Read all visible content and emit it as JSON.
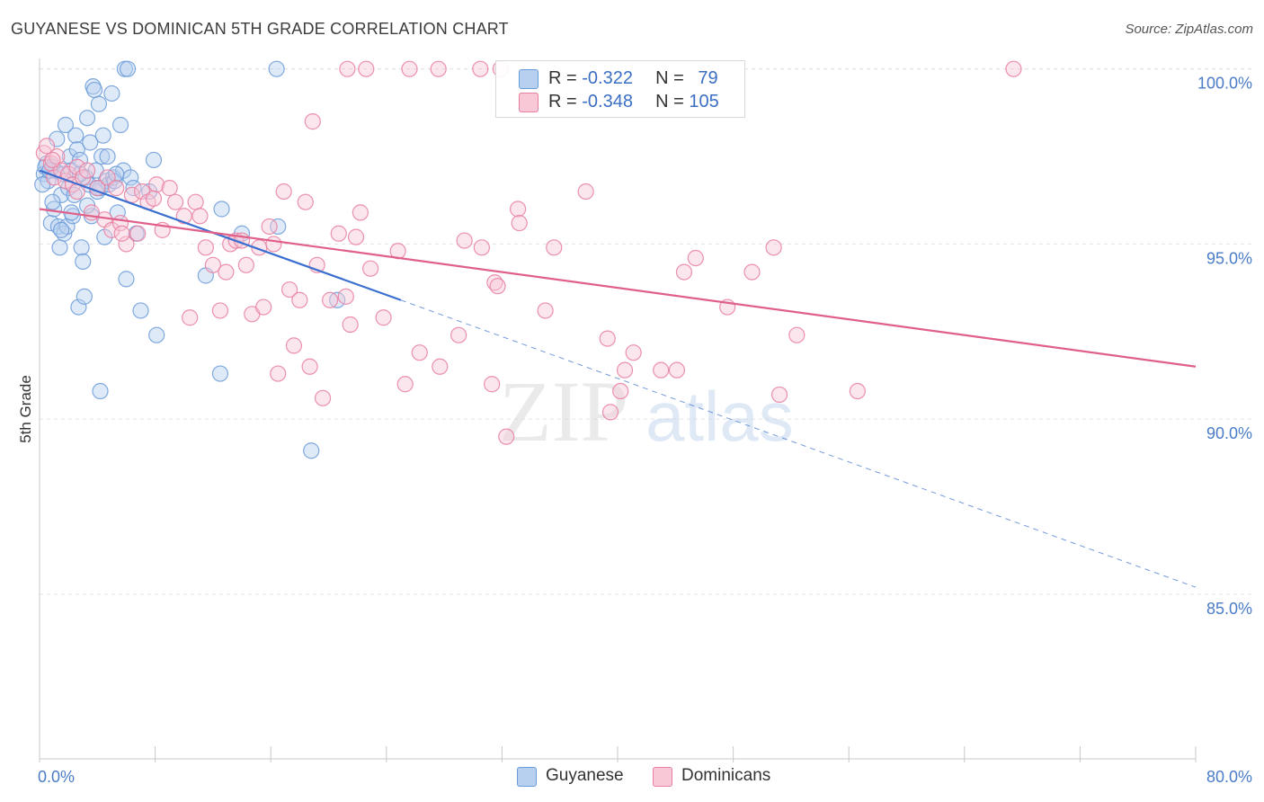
{
  "title": "GUYANESE VS DOMINICAN 5TH GRADE CORRELATION CHART",
  "source": "Source: ZipAtlas.com",
  "watermark": {
    "zip": "ZIP",
    "atlas": "atlas"
  },
  "legend": {
    "rows": [
      {
        "r_label": "R = ",
        "r_value": "-0.322",
        "n_label": "N = ",
        "n_value": "79",
        "color": "#6b9bd8",
        "fill": "#b8d0f0"
      },
      {
        "r_label": "R = ",
        "r_value": "-0.348",
        "n_label": "N = ",
        "n_value": "105",
        "color": "#e87ea0",
        "fill": "#f8c8d6"
      }
    ]
  },
  "bottom_legend": [
    {
      "label": "Guyanese",
      "color": "#6b9bd8",
      "fill": "#b8d0f0"
    },
    {
      "label": "Dominicans",
      "color": "#e87ea0",
      "fill": "#f8c8d6"
    }
  ],
  "chart_data": {
    "type": "scatter",
    "title": "GUYANESE VS DOMINICAN 5TH GRADE CORRELATION CHART",
    "xlabel": "",
    "ylabel": "5th Grade",
    "xlim": [
      0,
      80
    ],
    "ylim": [
      80.3,
      100.3
    ],
    "x_tick_labels": [
      "0.0%",
      "80.0%"
    ],
    "y_ticks": [
      100,
      95,
      90,
      85
    ],
    "y_tick_labels": [
      "100.0%",
      "95.0%",
      "90.0%",
      "85.0%"
    ],
    "grid": true,
    "legend_position": "top-center",
    "series": [
      {
        "name": "Guyanese",
        "color": "#6b9bd8",
        "fill": "#b8d0f0",
        "line_color": "#3a6fd0",
        "r": -0.322,
        "n": 79,
        "trend": {
          "x0": 0,
          "y0": 97.1,
          "x1": 25,
          "y1": 93.4,
          "dash_to_x": 80,
          "dash_to_y": 85.2
        },
        "points": [
          [
            0.3,
            97.0
          ],
          [
            0.5,
            97.3
          ],
          [
            0.6,
            96.8
          ],
          [
            0.8,
            95.6
          ],
          [
            0.9,
            97.2
          ],
          [
            1.0,
            96.0
          ],
          [
            1.1,
            97.1
          ],
          [
            1.2,
            98.0
          ],
          [
            1.3,
            95.5
          ],
          [
            1.4,
            94.9
          ],
          [
            1.5,
            96.4
          ],
          [
            1.6,
            97.0
          ],
          [
            1.7,
            95.3
          ],
          [
            1.8,
            98.4
          ],
          [
            1.9,
            95.5
          ],
          [
            2.0,
            96.6
          ],
          [
            2.1,
            97.5
          ],
          [
            2.2,
            97.1
          ],
          [
            2.3,
            95.8
          ],
          [
            2.4,
            96.4
          ],
          [
            2.5,
            98.1
          ],
          [
            2.6,
            97.7
          ],
          [
            2.7,
            93.2
          ],
          [
            2.8,
            97.4
          ],
          [
            2.9,
            94.9
          ],
          [
            3.0,
            94.5
          ],
          [
            3.1,
            93.5
          ],
          [
            3.2,
            96.9
          ],
          [
            3.3,
            98.6
          ],
          [
            3.4,
            96.7
          ],
          [
            3.5,
            97.9
          ],
          [
            3.6,
            95.8
          ],
          [
            3.7,
            99.5
          ],
          [
            3.8,
            99.4
          ],
          [
            3.9,
            97.1
          ],
          [
            4.0,
            96.5
          ],
          [
            4.1,
            99.0
          ],
          [
            4.2,
            96.6
          ],
          [
            4.3,
            97.5
          ],
          [
            4.4,
            98.1
          ],
          [
            4.5,
            95.2
          ],
          [
            4.6,
            96.8
          ],
          [
            4.7,
            97.5
          ],
          [
            4.8,
            96.7
          ],
          [
            5.0,
            99.3
          ],
          [
            5.1,
            96.9
          ],
          [
            5.2,
            96.8
          ],
          [
            5.4,
            95.9
          ],
          [
            5.6,
            98.4
          ],
          [
            5.8,
            97.1
          ],
          [
            5.9,
            100.0
          ],
          [
            6.1,
            100.0
          ],
          [
            6.3,
            96.9
          ],
          [
            6.5,
            96.6
          ],
          [
            6.7,
            95.3
          ],
          [
            7.0,
            93.1
          ],
          [
            7.6,
            96.5
          ],
          [
            7.9,
            97.4
          ],
          [
            8.1,
            92.4
          ],
          [
            6.0,
            94.0
          ],
          [
            11.5,
            94.1
          ],
          [
            12.6,
            96.0
          ],
          [
            12.5,
            91.3
          ],
          [
            14.0,
            95.3
          ],
          [
            16.4,
            100.0
          ],
          [
            16.5,
            95.5
          ],
          [
            18.8,
            89.1
          ],
          [
            20.6,
            93.4
          ],
          [
            4.2,
            90.8
          ],
          [
            0.4,
            97.2
          ],
          [
            0.7,
            97.1
          ],
          [
            1.5,
            95.4
          ],
          [
            2.2,
            95.9
          ],
          [
            2.8,
            97.0
          ],
          [
            3.3,
            96.1
          ],
          [
            4.0,
            96.6
          ],
          [
            5.3,
            97.0
          ],
          [
            0.2,
            96.7
          ],
          [
            0.9,
            96.2
          ]
        ]
      },
      {
        "name": "Dominicans",
        "color": "#e87ea0",
        "fill": "#f8c8d6",
        "line_color": "#e0608a",
        "r": -0.348,
        "n": 105,
        "trend": {
          "x0": 0,
          "y0": 96.0,
          "x1": 80,
          "y1": 91.5
        },
        "points": [
          [
            0.3,
            97.6
          ],
          [
            0.5,
            97.8
          ],
          [
            0.8,
            97.3
          ],
          [
            1.0,
            96.9
          ],
          [
            1.2,
            97.5
          ],
          [
            1.5,
            97.1
          ],
          [
            1.8,
            96.8
          ],
          [
            2.0,
            97.0
          ],
          [
            2.3,
            96.7
          ],
          [
            2.6,
            97.2
          ],
          [
            3.0,
            96.9
          ],
          [
            3.3,
            97.1
          ],
          [
            3.6,
            95.9
          ],
          [
            4.0,
            96.6
          ],
          [
            4.5,
            95.7
          ],
          [
            4.7,
            96.9
          ],
          [
            5.0,
            95.4
          ],
          [
            5.3,
            96.6
          ],
          [
            5.6,
            95.6
          ],
          [
            6.0,
            95.0
          ],
          [
            6.4,
            96.4
          ],
          [
            6.8,
            95.3
          ],
          [
            7.1,
            96.5
          ],
          [
            7.5,
            96.2
          ],
          [
            8.1,
            96.7
          ],
          [
            8.5,
            95.4
          ],
          [
            9.0,
            96.6
          ],
          [
            9.4,
            96.2
          ],
          [
            10.0,
            95.8
          ],
          [
            10.4,
            92.9
          ],
          [
            10.8,
            96.2
          ],
          [
            11.1,
            95.8
          ],
          [
            11.5,
            94.9
          ],
          [
            12.0,
            94.4
          ],
          [
            12.5,
            93.1
          ],
          [
            12.9,
            94.2
          ],
          [
            13.2,
            95.0
          ],
          [
            13.6,
            95.1
          ],
          [
            14.0,
            95.1
          ],
          [
            14.3,
            94.4
          ],
          [
            14.7,
            93.0
          ],
          [
            15.2,
            94.9
          ],
          [
            15.5,
            93.2
          ],
          [
            15.9,
            95.5
          ],
          [
            16.2,
            95.0
          ],
          [
            16.5,
            91.3
          ],
          [
            16.9,
            96.5
          ],
          [
            17.3,
            93.7
          ],
          [
            17.6,
            92.1
          ],
          [
            18.0,
            93.4
          ],
          [
            18.4,
            96.2
          ],
          [
            18.7,
            91.5
          ],
          [
            18.9,
            98.5
          ],
          [
            19.2,
            94.4
          ],
          [
            19.6,
            90.6
          ],
          [
            20.1,
            93.4
          ],
          [
            20.7,
            95.3
          ],
          [
            21.2,
            93.5
          ],
          [
            21.5,
            92.7
          ],
          [
            21.9,
            95.2
          ],
          [
            22.2,
            95.9
          ],
          [
            22.9,
            94.3
          ],
          [
            23.8,
            92.9
          ],
          [
            24.8,
            94.8
          ],
          [
            25.3,
            91.0
          ],
          [
            26.3,
            91.9
          ],
          [
            27.7,
            91.5
          ],
          [
            29.0,
            92.4
          ],
          [
            29.4,
            95.1
          ],
          [
            30.6,
            94.9
          ],
          [
            31.3,
            91.0
          ],
          [
            31.5,
            93.9
          ],
          [
            31.7,
            93.8
          ],
          [
            32.3,
            89.5
          ],
          [
            33.1,
            96.0
          ],
          [
            33.2,
            95.6
          ],
          [
            35.0,
            93.1
          ],
          [
            35.6,
            94.9
          ],
          [
            37.8,
            96.5
          ],
          [
            39.3,
            92.3
          ],
          [
            39.5,
            90.2
          ],
          [
            40.2,
            90.8
          ],
          [
            40.5,
            91.4
          ],
          [
            41.1,
            91.9
          ],
          [
            43.0,
            91.4
          ],
          [
            44.1,
            91.4
          ],
          [
            44.6,
            94.2
          ],
          [
            45.4,
            94.6
          ],
          [
            47.6,
            93.2
          ],
          [
            49.3,
            94.2
          ],
          [
            50.8,
            94.9
          ],
          [
            51.2,
            90.7
          ],
          [
            52.4,
            92.4
          ],
          [
            56.6,
            90.8
          ],
          [
            21.3,
            100.0
          ],
          [
            22.6,
            100.0
          ],
          [
            25.6,
            100.0
          ],
          [
            27.6,
            100.0
          ],
          [
            30.5,
            100.0
          ],
          [
            31.9,
            100.0
          ],
          [
            67.4,
            100.0
          ],
          [
            0.9,
            97.4
          ],
          [
            2.6,
            96.5
          ],
          [
            5.7,
            95.3
          ],
          [
            7.9,
            96.3
          ]
        ]
      }
    ]
  }
}
